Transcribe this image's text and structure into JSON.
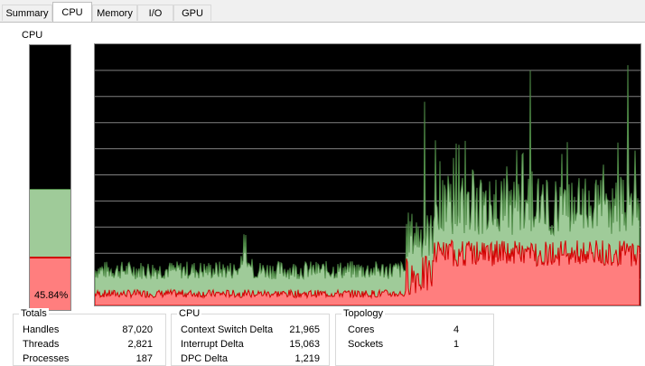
{
  "tabs": [
    {
      "label": "Summary",
      "active": false
    },
    {
      "label": "CPU",
      "active": true
    },
    {
      "label": "Memory",
      "active": false
    },
    {
      "label": "I/O",
      "active": false
    },
    {
      "label": "GPU",
      "active": false
    }
  ],
  "cpu_meter": {
    "label": "CPU",
    "percent_text": "45.84%",
    "total_fraction": 0.4584,
    "kernel_fraction": 0.2
  },
  "graph": {
    "background": "#000000",
    "gridline_color": "#808080",
    "total_fill": "#9fcb99",
    "total_line": "#4e8a46",
    "kernel_fill": "#ff7e7e",
    "kernel_line": "#d20000"
  },
  "totals": {
    "title": "Totals",
    "rows": [
      {
        "label": "Handles",
        "value": "87,020"
      },
      {
        "label": "Threads",
        "value": "2,821"
      },
      {
        "label": "Processes",
        "value": "187"
      }
    ]
  },
  "cpu_stats": {
    "title": "CPU",
    "rows": [
      {
        "label": "Context Switch Delta",
        "value": "21,965"
      },
      {
        "label": "Interrupt Delta",
        "value": "15,063"
      },
      {
        "label": "DPC Delta",
        "value": "1,219"
      }
    ]
  },
  "topology": {
    "title": "Topology",
    "rows": [
      {
        "label": "Cores",
        "value": "4"
      },
      {
        "label": "Sockets",
        "value": "1"
      }
    ]
  }
}
